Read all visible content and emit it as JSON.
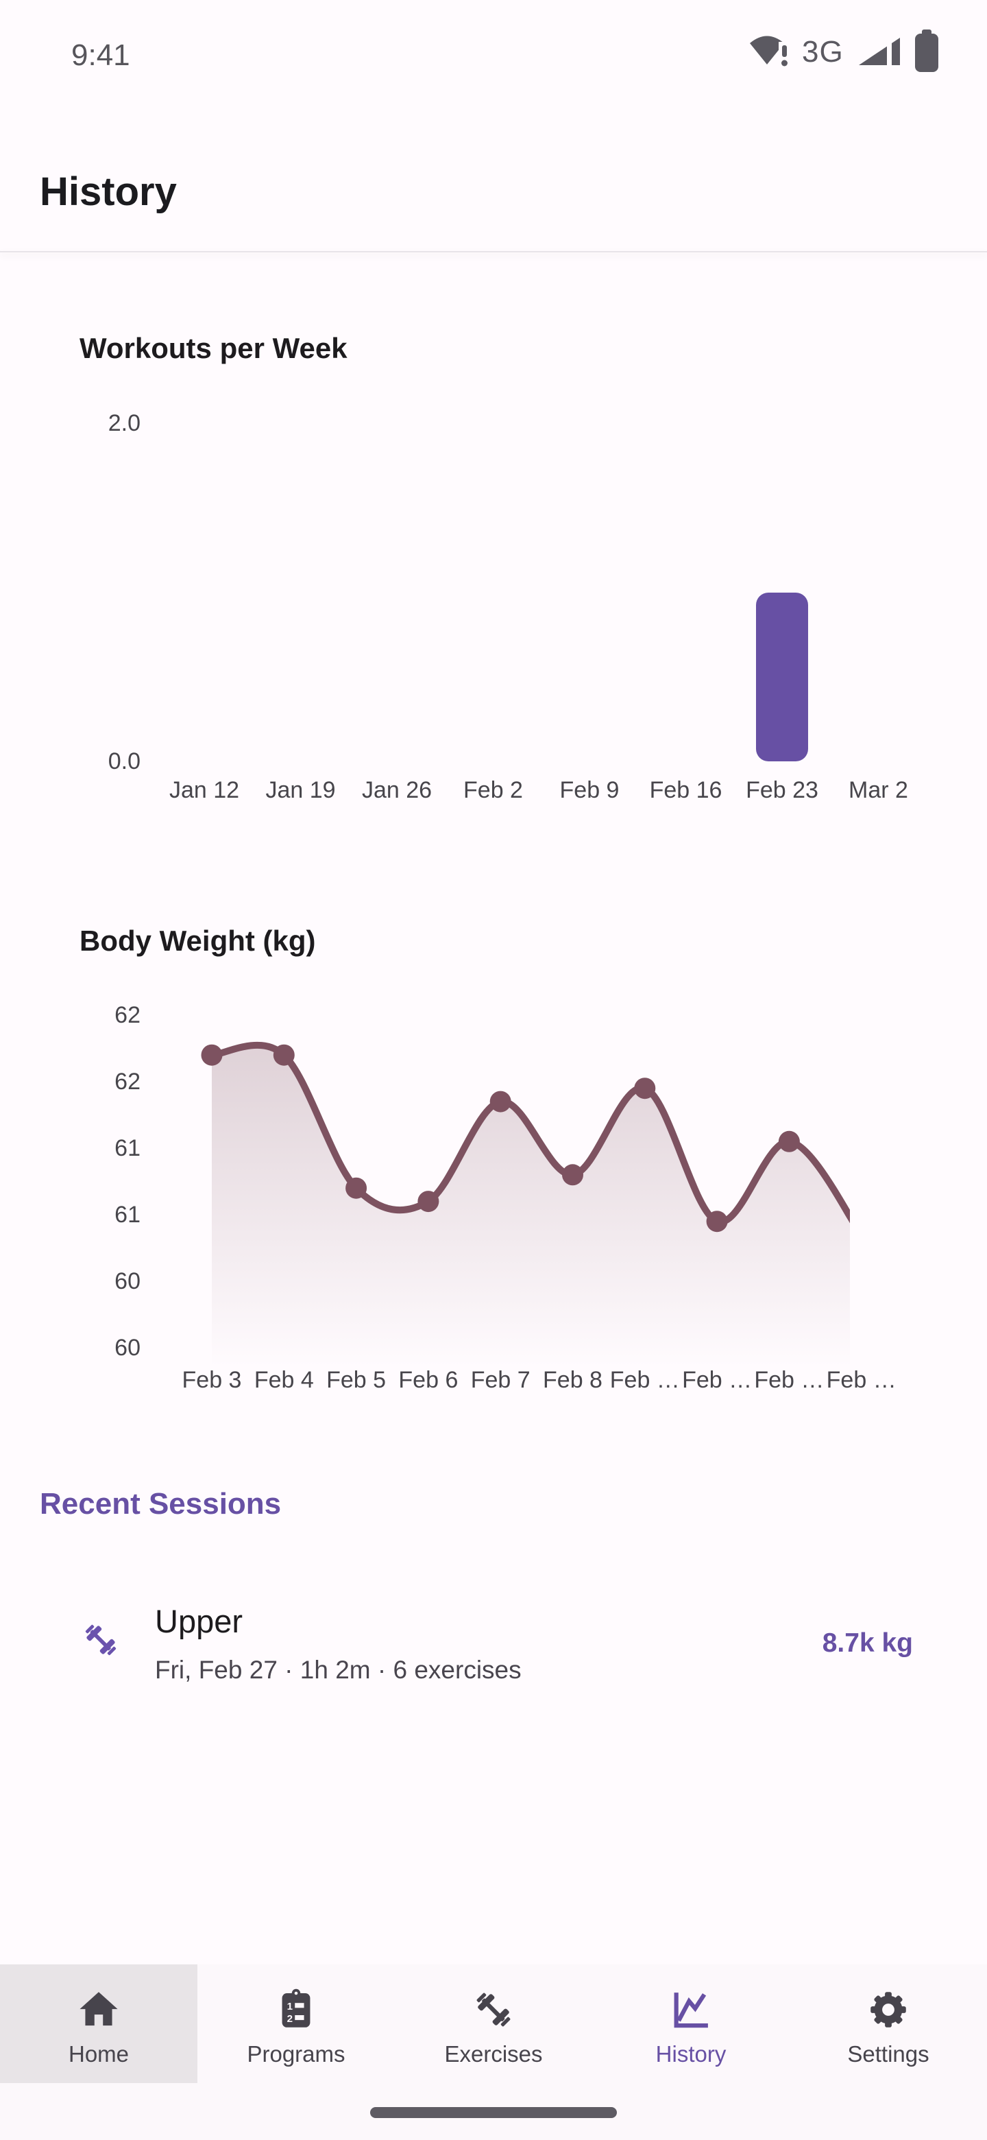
{
  "colors": {
    "background": "#fffbfe",
    "primary": "#6750a4",
    "line": "#7d5260",
    "session_icon": "#6a52ad",
    "axis_label": "#47454b",
    "nav_inactive": "#47444c",
    "home_highlight": "#e8e4e7"
  },
  "status_bar": {
    "time": "9:41",
    "network": "3G"
  },
  "header": {
    "title": "History"
  },
  "chart_data": [
    {
      "type": "bar",
      "title": "Workouts per Week",
      "categories": [
        "Jan 12",
        "Jan 19",
        "Jan 26",
        "Feb 2",
        "Feb 9",
        "Feb 16",
        "Feb 23",
        "Mar 2"
      ],
      "values": [
        0,
        0,
        0,
        0,
        0,
        0,
        1,
        0
      ],
      "ylim": [
        0,
        2
      ],
      "y_tick_labels": [
        "2.0",
        "0.0"
      ],
      "grid": false,
      "bar_color": "#6750a4"
    },
    {
      "type": "line",
      "title": "Body Weight (kg)",
      "x": [
        "Feb 3",
        "Feb 4",
        "Feb 5",
        "Feb 6",
        "Feb 7",
        "Feb 8",
        "Feb …",
        "Feb …",
        "Feb …",
        "Feb …"
      ],
      "values": [
        61.95,
        61.95,
        60.95,
        60.85,
        61.6,
        61.05,
        61.7,
        60.7,
        61.3,
        60.6
      ],
      "ylim": [
        59.5,
        62.5
      ],
      "y_tick_labels": [
        "62",
        "62",
        "61",
        "61",
        "60",
        "60"
      ],
      "grid": false,
      "legend": "none",
      "line_color": "#7d5260",
      "area_fill": true,
      "markers": true
    }
  ],
  "recent_sessions": {
    "heading": "Recent Sessions",
    "sessions": [
      {
        "name": "Upper",
        "details": "Fri, Feb 27 · 1h 2m · 6 exercises",
        "volume": "8.7k kg"
      }
    ]
  },
  "bottom_nav": {
    "items": [
      {
        "label": "Home",
        "icon": "home-icon",
        "active": false,
        "highlighted": true
      },
      {
        "label": "Programs",
        "icon": "programs-icon",
        "active": false,
        "highlighted": false
      },
      {
        "label": "Exercises",
        "icon": "exercises-icon",
        "active": false,
        "highlighted": false
      },
      {
        "label": "History",
        "icon": "history-icon",
        "active": true,
        "highlighted": false
      },
      {
        "label": "Settings",
        "icon": "settings-icon",
        "active": false,
        "highlighted": false
      }
    ]
  }
}
